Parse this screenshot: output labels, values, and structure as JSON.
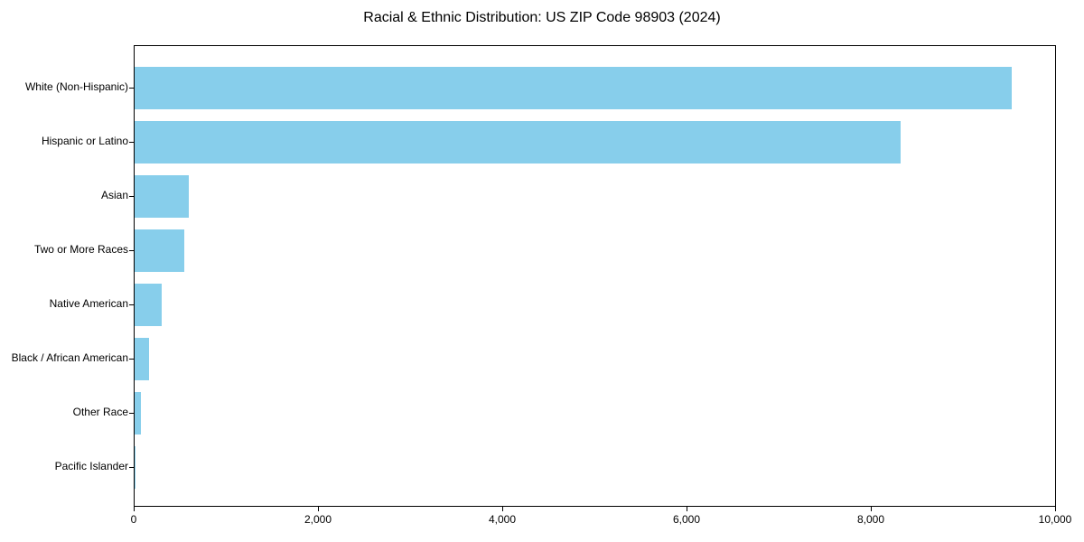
{
  "chart_data": {
    "type": "bar",
    "orientation": "horizontal",
    "title": "Racial & Ethnic Distribution: US ZIP Code 98903 (2024)",
    "categories": [
      "White (Non-Hispanic)",
      "Hispanic or Latino",
      "Asian",
      "Two or More Races",
      "Native American",
      "Black / African American",
      "Other Race",
      "Pacific Islander"
    ],
    "values": [
      9520,
      8315,
      590,
      535,
      295,
      155,
      70,
      10
    ],
    "xlabel": "",
    "ylabel": "",
    "xlim": [
      0,
      10000
    ],
    "xticks": [
      0,
      2000,
      4000,
      6000,
      8000,
      10000
    ],
    "xtick_labels": [
      "0",
      "2,000",
      "4,000",
      "6,000",
      "8,000",
      "10,000"
    ],
    "bar_color": "#87CEEB",
    "axis_color": "#000000",
    "text_color": "#000000",
    "grid": false,
    "legend": "none",
    "sort_order": "descending"
  }
}
